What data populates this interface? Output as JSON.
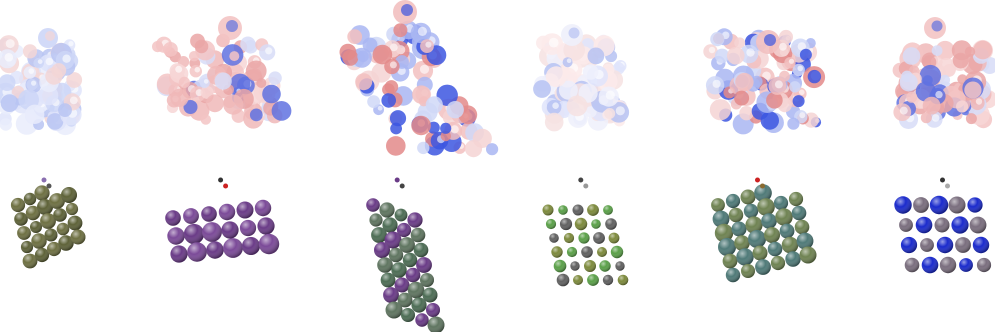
{
  "figure": {
    "rows": [
      {
        "name": "charge-density-difference-row",
        "panels": [
          {
            "id": "p1",
            "palette": "bwr",
            "bias": "blue"
          },
          {
            "id": "p2",
            "palette": "bwr",
            "bias": "red"
          },
          {
            "id": "p3",
            "palette": "bwr",
            "bias": "mixed"
          },
          {
            "id": "p4",
            "palette": "bwr",
            "bias": "light"
          },
          {
            "id": "p5",
            "palette": "bwr",
            "bias": "mixed"
          },
          {
            "id": "p6",
            "palette": "bwr",
            "bias": "red"
          }
        ]
      },
      {
        "name": "atomic-structure-row",
        "panels": [
          {
            "id": "s1",
            "atom_colors": [
              "#6e7042",
              "#5e6238"
            ],
            "adsorbate_colors": [
              "#8a6fb0",
              "#555555"
            ]
          },
          {
            "id": "s2",
            "atom_colors": [
              "#6a3b87",
              "#7b4a98"
            ],
            "adsorbate_colors": [
              "#333333",
              "#cc2222"
            ]
          },
          {
            "id": "s3",
            "atom_colors": [
              "#6a3b87",
              "#5f7560",
              "#4d6d55"
            ],
            "adsorbate_colors": [
              "#6a3b87",
              "#444444"
            ]
          },
          {
            "id": "s4",
            "atom_colors": [
              "#7d8a3c",
              "#5aa048",
              "#616161"
            ],
            "adsorbate_colors": [
              "#444444",
              "#999999"
            ]
          },
          {
            "id": "s5",
            "atom_colors": [
              "#6f8352",
              "#4f7a78"
            ],
            "adsorbate_colors": [
              "#cc2222",
              "#8a6a30"
            ]
          },
          {
            "id": "s6",
            "atom_colors": [
              "#1a2acc",
              "#7a6e7e"
            ],
            "adsorbate_colors": [
              "#333333",
              "#aaaaaa"
            ]
          }
        ]
      }
    ]
  }
}
